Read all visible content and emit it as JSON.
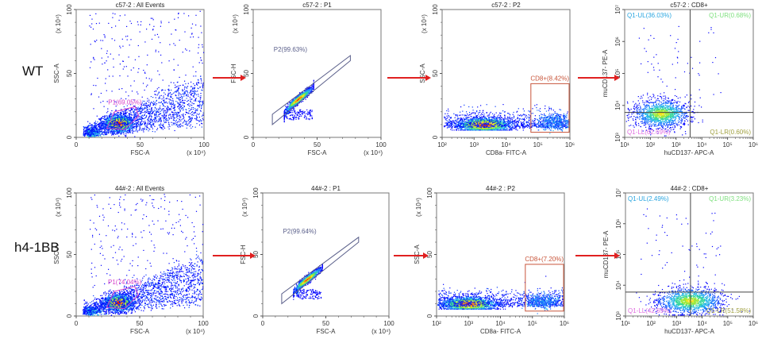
{
  "figure": {
    "rows": [
      {
        "label": "WT"
      },
      {
        "label": "h4-1BB"
      }
    ]
  },
  "chart_data": [
    {
      "type": "scatter",
      "row": 0,
      "title": "c57-2 : All Events",
      "xlabel": "FSC-A",
      "ylabel": "SSC-A",
      "xscale": "linear",
      "yscale": "linear",
      "xlim": [
        0,
        100
      ],
      "ylim": [
        0,
        100
      ],
      "x_multiplier": "(x 10⁴)",
      "y_multiplier": "(x 10⁴)",
      "xticks": [
        "0",
        "50",
        "100"
      ],
      "yticks": [
        "0",
        "50",
        "100"
      ],
      "gates": [
        {
          "name": "P1",
          "label": "P1(69.05%)",
          "percent": 69.05,
          "shape": "polygon",
          "color": "#d63fc8",
          "points": [
            [
              24,
              7
            ],
            [
              30,
              20
            ],
            [
              46,
              24
            ],
            [
              49,
              17
            ],
            [
              38,
              6
            ]
          ]
        }
      ],
      "density": {
        "pattern": "fsc-ssc",
        "center": [
          33,
          11
        ],
        "low_center": [
          8,
          4
        ]
      }
    },
    {
      "type": "scatter",
      "row": 0,
      "title": "c57-2 : P1",
      "xlabel": "FSC-A",
      "ylabel": "FSC-H",
      "xscale": "linear",
      "yscale": "linear",
      "xlim": [
        0,
        100
      ],
      "ylim": [
        0,
        100
      ],
      "x_multiplier": "(x 10⁴)",
      "y_multiplier": "(x 10⁴)",
      "xticks": [
        "0",
        "50",
        "100"
      ],
      "yticks": [
        "0",
        "50",
        "100"
      ],
      "gates": [
        {
          "name": "P2",
          "label": "P2(99.63%)",
          "percent": 99.63,
          "shape": "polygon",
          "color": "#5a5f8a",
          "points": [
            [
              15,
              10
            ],
            [
              15,
              18
            ],
            [
              76,
              64
            ],
            [
              76,
              60
            ]
          ]
        }
      ],
      "density": {
        "pattern": "singlets",
        "center": [
          35,
          30
        ]
      }
    },
    {
      "type": "scatter",
      "row": 0,
      "title": "c57-2 : P2",
      "xlabel": "CD8a- FITC-A",
      "ylabel": "SSC-A",
      "xscale": "log",
      "yscale": "linear",
      "xlim": [
        100,
        1000000
      ],
      "ylim": [
        0,
        100
      ],
      "y_multiplier": "(x 10⁴)",
      "xticks": [
        "10²",
        "10³",
        "10⁴",
        "10⁵",
        "10⁶"
      ],
      "yticks": [
        "0",
        "50",
        "100"
      ],
      "gates": [
        {
          "name": "CD8+",
          "label": "CD8+(8.42%)",
          "percent": 8.42,
          "shape": "rectangle",
          "color": "#c8553a",
          "x_range": [
            60000,
            1000000
          ],
          "y_range": [
            4,
            42
          ]
        }
      ],
      "density": {
        "pattern": "cd8",
        "center_log": 3.3,
        "pos_log": 5.5
      }
    },
    {
      "type": "scatter",
      "row": 0,
      "title": "c57-2 : CD8+",
      "xlabel": "huCD137- APC-A",
      "ylabel": "muCD137- PE-A",
      "xscale": "log",
      "yscale": "log",
      "xlim": [
        10,
        1000000
      ],
      "ylim": [
        1000,
        10000000
      ],
      "xticks": [
        "10¹",
        "10²",
        "10³",
        "10⁴",
        "10⁵",
        "10⁶"
      ],
      "yticks": [
        "10³",
        "10⁴",
        "10⁵",
        "10⁶",
        "10⁷"
      ],
      "quadrant_divider": {
        "x": 3500,
        "y": 6000
      },
      "quadrants": [
        {
          "name": "Q1-UL",
          "label": "Q1-UL(36.03%)",
          "percent": 36.03,
          "color": "#2aa6e0",
          "position": "top-left"
        },
        {
          "name": "Q1-UR",
          "label": "Q1-UR(0.68%)",
          "percent": 0.68,
          "color": "#7fe07f",
          "position": "top-right"
        },
        {
          "name": "Q1-LL",
          "label": "Q1-LL(62.69%)",
          "percent": 62.69,
          "color": "#e070e0",
          "position": "bottom-left"
        },
        {
          "name": "Q1-LR",
          "label": "Q1-LR(0.60%)",
          "percent": 0.6,
          "color": "#a0a040",
          "position": "bottom-right"
        }
      ],
      "density": {
        "pattern": "cd137",
        "center_log": [
          2.4,
          3.75
        ],
        "spread_x": 0.55
      }
    },
    {
      "type": "scatter",
      "row": 1,
      "title": "44#-2 : All Events",
      "xlabel": "FSC-A",
      "ylabel": "SSC-A",
      "xscale": "linear",
      "yscale": "linear",
      "xlim": [
        0,
        100
      ],
      "ylim": [
        0,
        100
      ],
      "x_multiplier": "(x 10⁴)",
      "y_multiplier": "(x 10⁴)",
      "xticks": [
        "0",
        "50",
        "100"
      ],
      "yticks": [
        "0",
        "50",
        "100"
      ],
      "gates": [
        {
          "name": "P1",
          "label": "P1(74.04%)",
          "percent": 74.04,
          "shape": "polygon",
          "color": "#d63fc8",
          "points": [
            [
              24,
              7
            ],
            [
              30,
              20
            ],
            [
              46,
              24
            ],
            [
              49,
              17
            ],
            [
              38,
              6
            ]
          ]
        }
      ],
      "density": {
        "pattern": "fsc-ssc",
        "center": [
          33,
          11
        ],
        "low_center": [
          8,
          4
        ]
      }
    },
    {
      "type": "scatter",
      "row": 1,
      "title": "44#-2 : P1",
      "xlabel": "FSC-A",
      "ylabel": "FSC-H",
      "xscale": "linear",
      "yscale": "linear",
      "xlim": [
        0,
        100
      ],
      "ylim": [
        0,
        100
      ],
      "x_multiplier": "(x 10⁴)",
      "y_multiplier": "(x 10⁴)",
      "xticks": [
        "0",
        "50",
        "100"
      ],
      "yticks": [
        "0",
        "50",
        "100"
      ],
      "gates": [
        {
          "name": "P2",
          "label": "P2(99.64%)",
          "percent": 99.64,
          "shape": "polygon",
          "color": "#5a5f8a",
          "points": [
            [
              15,
              10
            ],
            [
              15,
              18
            ],
            [
              76,
              64
            ],
            [
              76,
              60
            ]
          ]
        }
      ],
      "density": {
        "pattern": "singlets",
        "center": [
          35,
          30
        ]
      }
    },
    {
      "type": "scatter",
      "row": 1,
      "title": "44#-2 : P2",
      "xlabel": "CD8a- FITC-A",
      "ylabel": "SSC-A",
      "xscale": "log",
      "yscale": "linear",
      "xlim": [
        100,
        1000000
      ],
      "ylim": [
        0,
        100
      ],
      "y_multiplier": "(x 10⁴)",
      "xticks": [
        "10²",
        "10³",
        "10⁴",
        "10⁵",
        "10⁶"
      ],
      "yticks": [
        "0",
        "50",
        "100"
      ],
      "gates": [
        {
          "name": "CD8+",
          "label": "CD8+(7.20%)",
          "percent": 7.2,
          "shape": "rectangle",
          "color": "#c8553a",
          "x_range": [
            60000,
            1000000
          ],
          "y_range": [
            4,
            42
          ]
        }
      ],
      "density": {
        "pattern": "cd8",
        "center_log": 3.0,
        "pos_log": 5.3
      }
    },
    {
      "type": "scatter",
      "row": 1,
      "title": "44#-2 : CD8+",
      "xlabel": "huCD137- APC-A",
      "ylabel": "muCD137- PE-A",
      "xscale": "log",
      "yscale": "log",
      "xlim": [
        10,
        1000000
      ],
      "ylim": [
        1000,
        10000000
      ],
      "xticks": [
        "10¹",
        "10²",
        "10³",
        "10⁴",
        "10⁵",
        "10⁶"
      ],
      "yticks": [
        "10³",
        "10⁴",
        "10⁵",
        "10⁶",
        "10⁷"
      ],
      "quadrant_divider": {
        "x": 3500,
        "y": 6000
      },
      "quadrants": [
        {
          "name": "Q1-UL",
          "label": "Q1-UL(2.49%)",
          "percent": 2.49,
          "color": "#2aa6e0",
          "position": "top-left"
        },
        {
          "name": "Q1-UR",
          "label": "Q1-UR(3.23%)",
          "percent": 3.23,
          "color": "#7fe07f",
          "position": "top-right"
        },
        {
          "name": "Q1-LL",
          "label": "Q1-LL(42.69%)",
          "percent": 42.69,
          "color": "#e070e0",
          "position": "bottom-left"
        },
        {
          "name": "Q1-LR",
          "label": "Q1-LR(51.58%)",
          "percent": 51.58,
          "color": "#a0a040",
          "position": "bottom-right"
        }
      ],
      "density": {
        "pattern": "cd137",
        "center_log": [
          3.5,
          3.5
        ],
        "spread_x": 0.65
      }
    }
  ],
  "arrows": {
    "color": "#e02020",
    "count_per_row": 3
  }
}
